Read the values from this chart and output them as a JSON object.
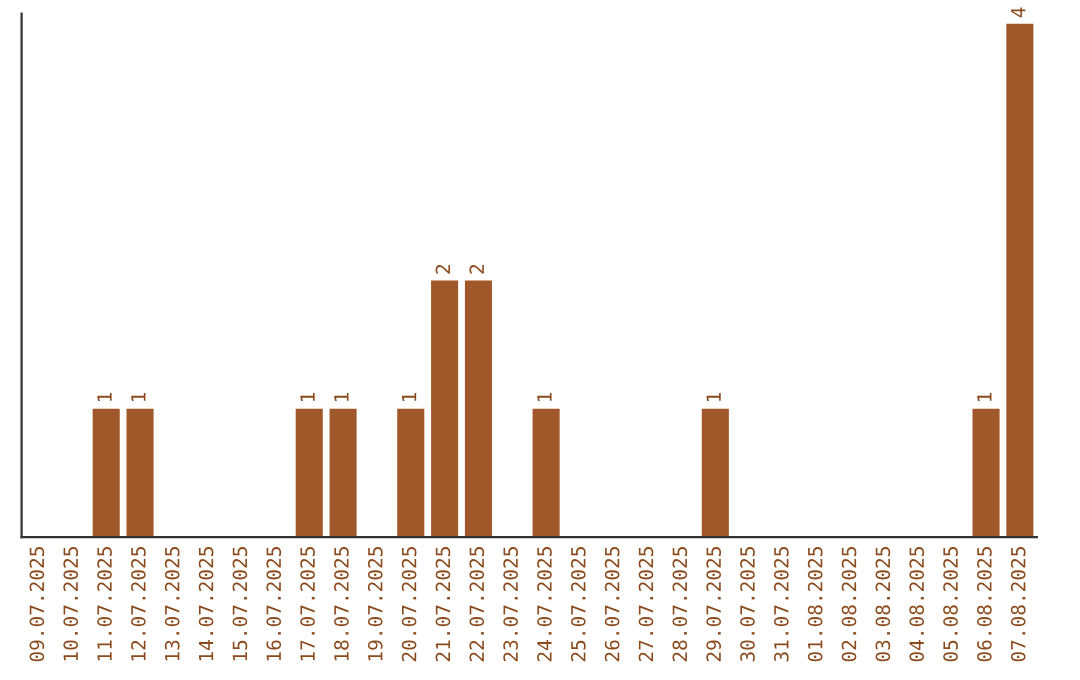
{
  "chart_data": {
    "type": "bar",
    "categories": [
      "09.07.2025",
      "10.07.2025",
      "11.07.2025",
      "12.07.2025",
      "13.07.2025",
      "14.07.2025",
      "15.07.2025",
      "16.07.2025",
      "17.07.2025",
      "18.07.2025",
      "19.07.2025",
      "20.07.2025",
      "21.07.2025",
      "22.07.2025",
      "23.07.2025",
      "24.07.2025",
      "25.07.2025",
      "26.07.2025",
      "27.07.2025",
      "28.07.2025",
      "29.07.2025",
      "30.07.2025",
      "31.07.2025",
      "01.08.2025",
      "02.08.2025",
      "03.08.2025",
      "04.08.2025",
      "05.08.2025",
      "06.08.2025",
      "07.08.2025"
    ],
    "values": [
      0,
      0,
      1,
      1,
      0,
      0,
      0,
      0,
      1,
      1,
      0,
      1,
      2,
      2,
      0,
      1,
      0,
      0,
      0,
      0,
      1,
      0,
      0,
      0,
      0,
      0,
      0,
      0,
      1,
      4
    ],
    "value_labels": [
      null,
      null,
      "1",
      "1",
      null,
      null,
      null,
      null,
      "1",
      "1",
      null,
      "1",
      "2",
      "2",
      null,
      "1",
      null,
      null,
      null,
      null,
      "1",
      null,
      null,
      null,
      null,
      null,
      null,
      null,
      "1",
      "4"
    ],
    "color": "#a0582a",
    "tick_labels": "x",
    "grid": false,
    "legend": false
  }
}
